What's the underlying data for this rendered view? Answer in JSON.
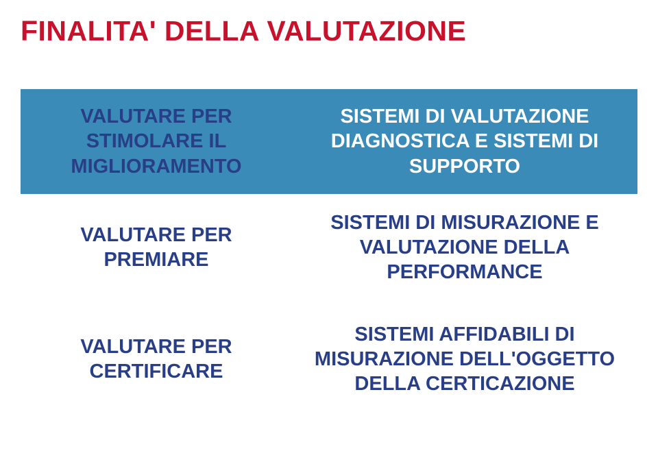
{
  "title": {
    "text": "FINALITA' DELLA VALUTAZIONE",
    "color": "#c8122c",
    "fontsize": 41,
    "fontweight": "bold"
  },
  "table": {
    "type": "table",
    "background_color": "#ffffff",
    "band_color": "#3b8bb8",
    "left_text_color": "#283e87",
    "right_text_color_band": "#ffffff",
    "right_text_color_plain": "#283e87",
    "row_spacing": 6,
    "columns": [
      {
        "key": "left",
        "width_pct": 44,
        "align": "center"
      },
      {
        "key": "right",
        "width_pct": 56,
        "align": "center"
      }
    ],
    "rows": [
      {
        "band": true,
        "left": "VALUTARE PER STIMOLARE IL MIGLIORAMENTO",
        "right": "SISTEMI DI VALUTAZIONE DIAGNOSTICA E SISTEMI DI SUPPORTO"
      },
      {
        "band": false,
        "left": "VALUTARE PER PREMIARE",
        "right": "SISTEMI DI MISURAZIONE E VALUTAZIONE DELLA PERFORMANCE"
      },
      {
        "band": false,
        "left": "VALUTARE PER CERTIFICARE",
        "right": "SISTEMI AFFIDABILI DI MISURAZIONE DELL'OGGETTO DELLA CERTICAZIONE"
      }
    ],
    "cell_fontsize": 29,
    "cell_fontweight": "bold"
  }
}
